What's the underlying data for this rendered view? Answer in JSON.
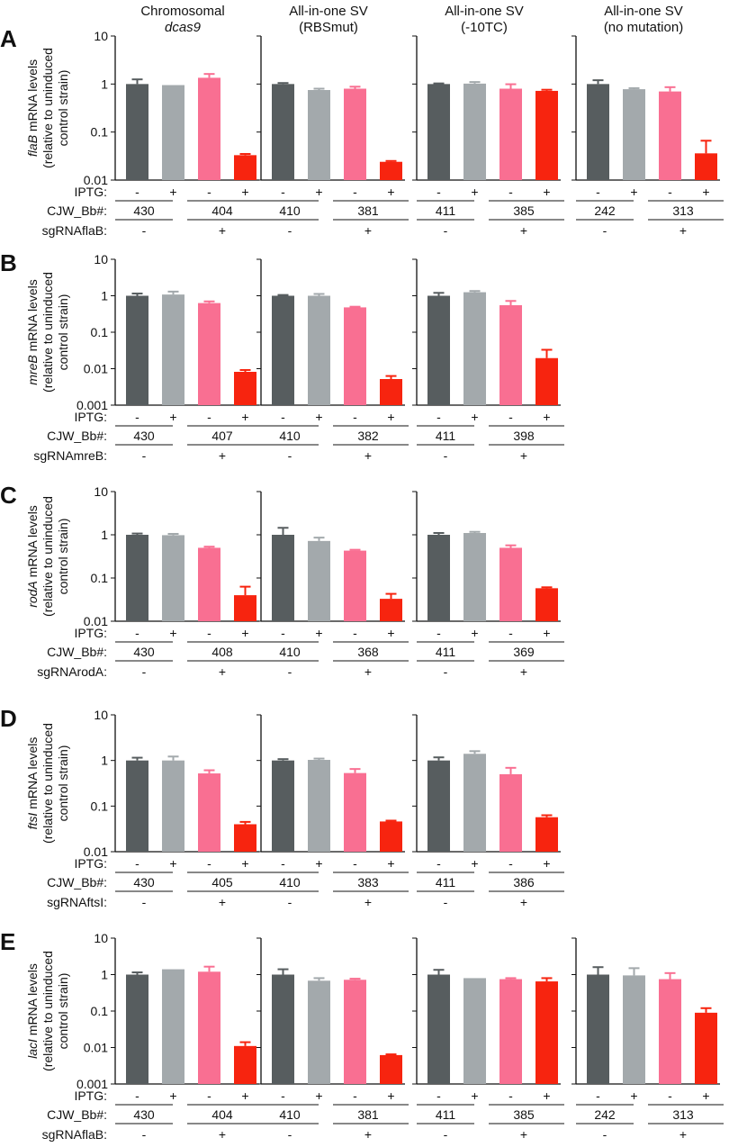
{
  "figure": {
    "columns": [
      {
        "line1": "Chromosomal",
        "line2": "dcas9",
        "line2_italic": true
      },
      {
        "line1": "All-in-one SV",
        "line2": "(RBSmut)",
        "line2_italic": false
      },
      {
        "line1": "All-in-one SV",
        "line2": "(-10TC)",
        "line2_italic": false
      },
      {
        "line1": "All-in-one SV",
        "line2": "(no mutation)",
        "line2_italic": false
      }
    ],
    "ylabel_suffix": " mRNA levels",
    "ylabel_line2": "(relative to uninduced",
    "ylabel_line3": "control strain)",
    "row_labels": {
      "iptg": "IPTG:",
      "strain": "CJW_Bb#:"
    },
    "iptg_signs": [
      "-",
      "+",
      "-",
      "+"
    ],
    "sgrna_signs": [
      "-",
      "+"
    ]
  },
  "colors": {
    "dark": "#575d5f",
    "light": "#a3a9ac",
    "pink": "#f96f92",
    "red": "#f7240f"
  },
  "chart_data": [
    {
      "panel": "A",
      "gene": "flaB",
      "type": "bar",
      "yscale": "log",
      "ylim": [
        0.01,
        10
      ],
      "ticks": [
        {
          "v": 10,
          "label": "10"
        },
        {
          "v": 1,
          "label": "1"
        },
        {
          "v": 0.1,
          "label": "0.1"
        },
        {
          "v": 0.01,
          "label": "0.01"
        }
      ],
      "sgrna": "sgRNAflaB:",
      "series": [
        "uninduced control",
        "induced control",
        "uninduced sgRNA",
        "induced sgRNA"
      ],
      "subplots": [
        {
          "column": "Chromosomal dcas9",
          "strains": [
            "430",
            "404"
          ],
          "values": [
            1.0,
            0.95,
            1.35,
            0.033
          ],
          "errors": [
            1.25,
            0.95,
            1.62,
            0.035
          ]
        },
        {
          "column": "All-in-one SV (RBSmut)",
          "strains": [
            "410",
            "381"
          ],
          "values": [
            1.0,
            0.75,
            0.8,
            0.024
          ],
          "errors": [
            1.05,
            0.8,
            0.88,
            0.025
          ]
        },
        {
          "column": "All-in-one SV (-10TC)",
          "strains": [
            "411",
            "385"
          ],
          "values": [
            1.0,
            1.02,
            0.8,
            0.72
          ],
          "errors": [
            1.03,
            1.1,
            0.99,
            0.76
          ]
        },
        {
          "column": "All-in-one SV (no mutation)",
          "strains": [
            "242",
            "313"
          ],
          "values": [
            1.0,
            0.78,
            0.7,
            0.036
          ],
          "errors": [
            1.2,
            0.82,
            0.86,
            0.066
          ]
        }
      ]
    },
    {
      "panel": "B",
      "gene": "mreB",
      "type": "bar",
      "yscale": "log",
      "ylim": [
        0.001,
        10
      ],
      "ticks": [
        {
          "v": 10,
          "label": "10"
        },
        {
          "v": 1,
          "label": "1"
        },
        {
          "v": 0.1,
          "label": "0.1"
        },
        {
          "v": 0.01,
          "label": "0.01"
        },
        {
          "v": 0.001,
          "label": "0.001"
        }
      ],
      "sgrna": "sgRNAmreB:",
      "series": [
        "uninduced control",
        "induced control",
        "uninduced sgRNA",
        "induced sgRNA"
      ],
      "subplots": [
        {
          "column": "Chromosomal dcas9",
          "strains": [
            "430",
            "407"
          ],
          "values": [
            1.0,
            1.08,
            0.63,
            0.0082
          ],
          "errors": [
            1.15,
            1.3,
            0.7,
            0.0092
          ]
        },
        {
          "column": "All-in-one SV (RBSmut)",
          "strains": [
            "410",
            "382"
          ],
          "values": [
            1.0,
            1.0,
            0.48,
            0.0052
          ],
          "errors": [
            1.05,
            1.12,
            0.5,
            0.0063
          ]
        },
        {
          "column": "All-in-one SV (-10TC)",
          "strains": [
            "411",
            "398"
          ],
          "values": [
            1.0,
            1.25,
            0.55,
            0.0195
          ],
          "errors": [
            1.2,
            1.35,
            0.72,
            0.033
          ]
        }
      ]
    },
    {
      "panel": "C",
      "gene": "rodA",
      "type": "bar",
      "yscale": "log",
      "ylim": [
        0.01,
        10
      ],
      "ticks": [
        {
          "v": 10,
          "label": "10"
        },
        {
          "v": 1,
          "label": "1"
        },
        {
          "v": 0.1,
          "label": "0.1"
        },
        {
          "v": 0.01,
          "label": "0.01"
        }
      ],
      "sgrna": "sgRNArodA:",
      "series": [
        "uninduced control",
        "induced control",
        "uninduced sgRNA",
        "induced sgRNA"
      ],
      "subplots": [
        {
          "column": "Chromosomal dcas9",
          "strains": [
            "430",
            "408"
          ],
          "values": [
            1.0,
            0.98,
            0.5,
            0.04
          ],
          "errors": [
            1.07,
            1.05,
            0.53,
            0.063
          ]
        },
        {
          "column": "All-in-one SV (RBSmut)",
          "strains": [
            "410",
            "368"
          ],
          "values": [
            1.0,
            0.72,
            0.43,
            0.033
          ],
          "errors": [
            1.45,
            0.86,
            0.45,
            0.043
          ]
        },
        {
          "column": "All-in-one SV (-10TC)",
          "strains": [
            "411",
            "369"
          ],
          "values": [
            1.0,
            1.1,
            0.5,
            0.058
          ],
          "errors": [
            1.1,
            1.17,
            0.57,
            0.061
          ]
        }
      ]
    },
    {
      "panel": "D",
      "gene": "ftsI",
      "type": "bar",
      "yscale": "log",
      "ylim": [
        0.01,
        10
      ],
      "ticks": [
        {
          "v": 10,
          "label": "10"
        },
        {
          "v": 1,
          "label": "1"
        },
        {
          "v": 0.1,
          "label": "0.1"
        },
        {
          "v": 0.01,
          "label": "0.01"
        }
      ],
      "sgrna": "sgRNAftsI:",
      "series": [
        "uninduced control",
        "induced control",
        "uninduced sgRNA",
        "induced sgRNA"
      ],
      "subplots": [
        {
          "column": "Chromosomal dcas9",
          "strains": [
            "430",
            "405"
          ],
          "values": [
            1.0,
            1.0,
            0.52,
            0.04
          ],
          "errors": [
            1.15,
            1.22,
            0.61,
            0.045
          ]
        },
        {
          "column": "All-in-one SV (RBSmut)",
          "strains": [
            "410",
            "383"
          ],
          "values": [
            1.0,
            1.03,
            0.53,
            0.046
          ],
          "errors": [
            1.07,
            1.1,
            0.65,
            0.048
          ]
        },
        {
          "column": "All-in-one SV (-10TC)",
          "strains": [
            "411",
            "386"
          ],
          "values": [
            1.0,
            1.4,
            0.5,
            0.057
          ],
          "errors": [
            1.17,
            1.6,
            0.69,
            0.063
          ]
        }
      ]
    },
    {
      "panel": "E",
      "gene": "lacI",
      "type": "bar",
      "yscale": "log",
      "ylim": [
        0.001,
        10
      ],
      "ticks": [
        {
          "v": 10,
          "label": "10"
        },
        {
          "v": 1,
          "label": "1"
        },
        {
          "v": 0.1,
          "label": "0.1"
        },
        {
          "v": 0.01,
          "label": "0.01"
        },
        {
          "v": 0.001,
          "label": "0.001"
        }
      ],
      "sgrna": "sgRNAflaB:",
      "series": [
        "uninduced control",
        "induced control",
        "uninduced sgRNA",
        "induced sgRNA"
      ],
      "subplots": [
        {
          "column": "Chromosomal dcas9",
          "strains": [
            "430",
            "404"
          ],
          "values": [
            1.0,
            1.4,
            1.2,
            0.011
          ],
          "errors": [
            1.15,
            1.4,
            1.65,
            0.014
          ]
        },
        {
          "column": "All-in-one SV (RBSmut)",
          "strains": [
            "410",
            "381"
          ],
          "values": [
            1.0,
            0.68,
            0.72,
            0.0062
          ],
          "errors": [
            1.4,
            0.8,
            0.77,
            0.0065
          ]
        },
        {
          "column": "All-in-one SV (-10TC)",
          "strains": [
            "411",
            "385"
          ],
          "values": [
            1.0,
            0.8,
            0.75,
            0.65
          ],
          "errors": [
            1.35,
            0.8,
            0.8,
            0.8
          ]
        },
        {
          "column": "All-in-one SV (no mutation)",
          "strains": [
            "242",
            "313"
          ],
          "values": [
            1.0,
            0.95,
            0.75,
            0.09
          ],
          "errors": [
            1.6,
            1.5,
            1.1,
            0.12
          ]
        }
      ]
    }
  ]
}
